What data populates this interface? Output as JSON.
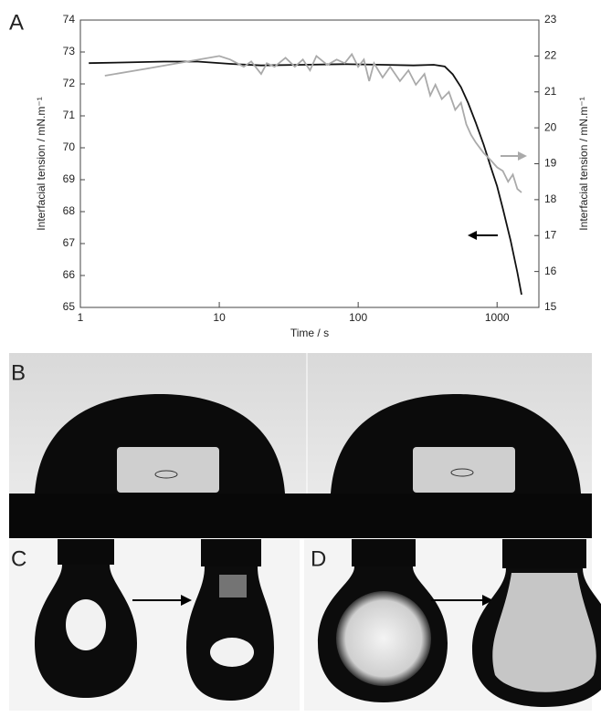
{
  "chart_data": {
    "type": "line",
    "x_label": "Time / s",
    "y_label": "Interfacial tension / mN.m⁻¹",
    "y2_label": "Interfacial tension / mN.m⁻¹",
    "log_x": true,
    "xlim": [
      1,
      2000
    ],
    "xticks": [
      1,
      10,
      100,
      1000
    ],
    "ylim": [
      65,
      74
    ],
    "yticks": [
      65,
      66,
      67,
      68,
      69,
      70,
      71,
      72,
      73,
      74
    ],
    "y2lim": [
      15,
      23
    ],
    "y2ticks": [
      15,
      16,
      17,
      18,
      19,
      20,
      21,
      22,
      23
    ],
    "series": [
      {
        "color": "#111111",
        "axis": "y",
        "x": [
          1.15,
          2,
          4,
          7,
          12,
          20,
          40,
          80,
          150,
          250,
          350,
          420,
          480,
          550,
          620,
          700,
          800,
          900,
          1000,
          1100,
          1250,
          1400,
          1500
        ],
        "values": [
          72.65,
          72.67,
          72.7,
          72.7,
          72.63,
          72.58,
          72.6,
          72.62,
          72.6,
          72.58,
          72.6,
          72.55,
          72.3,
          71.9,
          71.4,
          70.8,
          70.1,
          69.4,
          68.8,
          68.1,
          67.1,
          66.1,
          65.4
        ]
      },
      {
        "color": "#aaaaaa",
        "axis": "y2",
        "x": [
          1.5,
          3,
          6,
          10,
          12,
          15,
          17,
          20,
          22,
          25,
          30,
          35,
          40,
          45,
          50,
          60,
          70,
          80,
          90,
          100,
          110,
          120,
          130,
          150,
          170,
          200,
          230,
          260,
          300,
          330,
          360,
          400,
          450,
          500,
          550,
          600,
          650,
          700,
          800,
          900,
          1000,
          1100,
          1200,
          1300,
          1400,
          1500
        ],
        "values": [
          21.45,
          21.65,
          21.85,
          22.0,
          21.9,
          21.7,
          21.85,
          21.5,
          21.8,
          21.7,
          21.95,
          21.7,
          21.9,
          21.6,
          22.0,
          21.75,
          21.9,
          21.8,
          22.05,
          21.7,
          21.9,
          21.3,
          21.8,
          21.4,
          21.7,
          21.3,
          21.6,
          21.2,
          21.5,
          20.9,
          21.2,
          20.8,
          21.0,
          20.5,
          20.7,
          20.1,
          19.8,
          19.6,
          19.3,
          19.1,
          18.9,
          18.8,
          18.5,
          18.7,
          18.3,
          18.2
        ]
      }
    ]
  },
  "panel_labels": [
    "A",
    "B",
    "C",
    "D"
  ]
}
